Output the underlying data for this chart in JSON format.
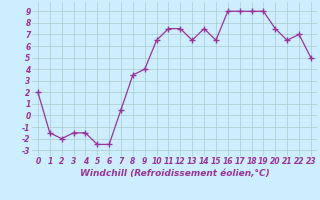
{
  "x": [
    0,
    1,
    2,
    3,
    4,
    5,
    6,
    7,
    8,
    9,
    10,
    11,
    12,
    13,
    14,
    15,
    16,
    17,
    18,
    19,
    20,
    21,
    22,
    23
  ],
  "y": [
    2,
    -1.5,
    -2,
    -1.5,
    -1.5,
    -2.5,
    -2.5,
    0.5,
    3.5,
    4,
    6.5,
    7.5,
    7.5,
    6.5,
    7.5,
    6.5,
    9,
    9,
    9,
    9,
    7.5,
    6.5,
    7,
    5
  ],
  "line_color": "#993399",
  "marker": "+",
  "marker_size": 4,
  "bg_color": "#cceeff",
  "grid_color": "#aacccc",
  "xlabel": "Windchill (Refroidissement éolien,°C)",
  "xlabel_fontsize": 6.5,
  "ylabel_ticks": [
    -3,
    -2,
    -1,
    0,
    1,
    2,
    3,
    4,
    5,
    6,
    7,
    8,
    9
  ],
  "ylim": [
    -3.5,
    9.8
  ],
  "xlim": [
    -0.5,
    23.5
  ],
  "tick_fontsize": 5.5,
  "label_color": "#993399"
}
